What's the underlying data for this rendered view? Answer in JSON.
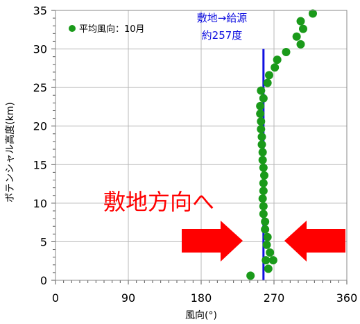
{
  "chart_data": {
    "type": "scatter",
    "xlabel": "風向(°)",
    "ylabel": "ポテンシャル高度(km)",
    "xlim": [
      0,
      360
    ],
    "ylim": [
      0,
      35
    ],
    "xticks": [
      0,
      90,
      180,
      270,
      360
    ],
    "yticks": [
      0,
      5,
      10,
      15,
      20,
      25,
      30,
      35
    ],
    "grid": true,
    "legend_position": "top-left",
    "series": [
      {
        "name": "平均風向：10月",
        "color": "#1a9a1a",
        "points": [
          [
            241,
            0.6
          ],
          [
            263,
            1.5
          ],
          [
            260,
            2.6
          ],
          [
            269,
            2.6
          ],
          [
            265,
            3.6
          ],
          [
            261,
            4.6
          ],
          [
            262,
            5.6
          ],
          [
            259,
            6.6
          ],
          [
            259,
            7.6
          ],
          [
            257,
            8.6
          ],
          [
            257,
            9.6
          ],
          [
            256,
            10.6
          ],
          [
            257,
            11.6
          ],
          [
            257,
            12.6
          ],
          [
            258,
            13.6
          ],
          [
            257,
            14.6
          ],
          [
            256,
            15.6
          ],
          [
            256,
            16.6
          ],
          [
            255,
            17.6
          ],
          [
            255,
            18.6
          ],
          [
            254,
            19.6
          ],
          [
            254,
            20.6
          ],
          [
            253,
            21.6
          ],
          [
            253,
            22.6
          ],
          [
            257,
            23.6
          ],
          [
            254,
            24.6
          ],
          [
            262,
            25.6
          ],
          [
            264,
            26.6
          ],
          [
            271,
            27.6
          ],
          [
            274,
            28.6
          ],
          [
            285,
            29.6
          ],
          [
            303,
            30.6
          ],
          [
            298,
            31.6
          ],
          [
            306,
            32.6
          ],
          [
            303,
            33.6
          ],
          [
            318,
            34.6
          ]
        ]
      }
    ],
    "reference_line": {
      "x": 257,
      "y_range": [
        0,
        30
      ],
      "color": "#1010e0",
      "label_line1": "敷地→給源",
      "label_line2": "約257度"
    },
    "annotation": {
      "text": "敷地方向へ",
      "color": "#ff0000",
      "arrow_color": "#ff0000"
    }
  }
}
